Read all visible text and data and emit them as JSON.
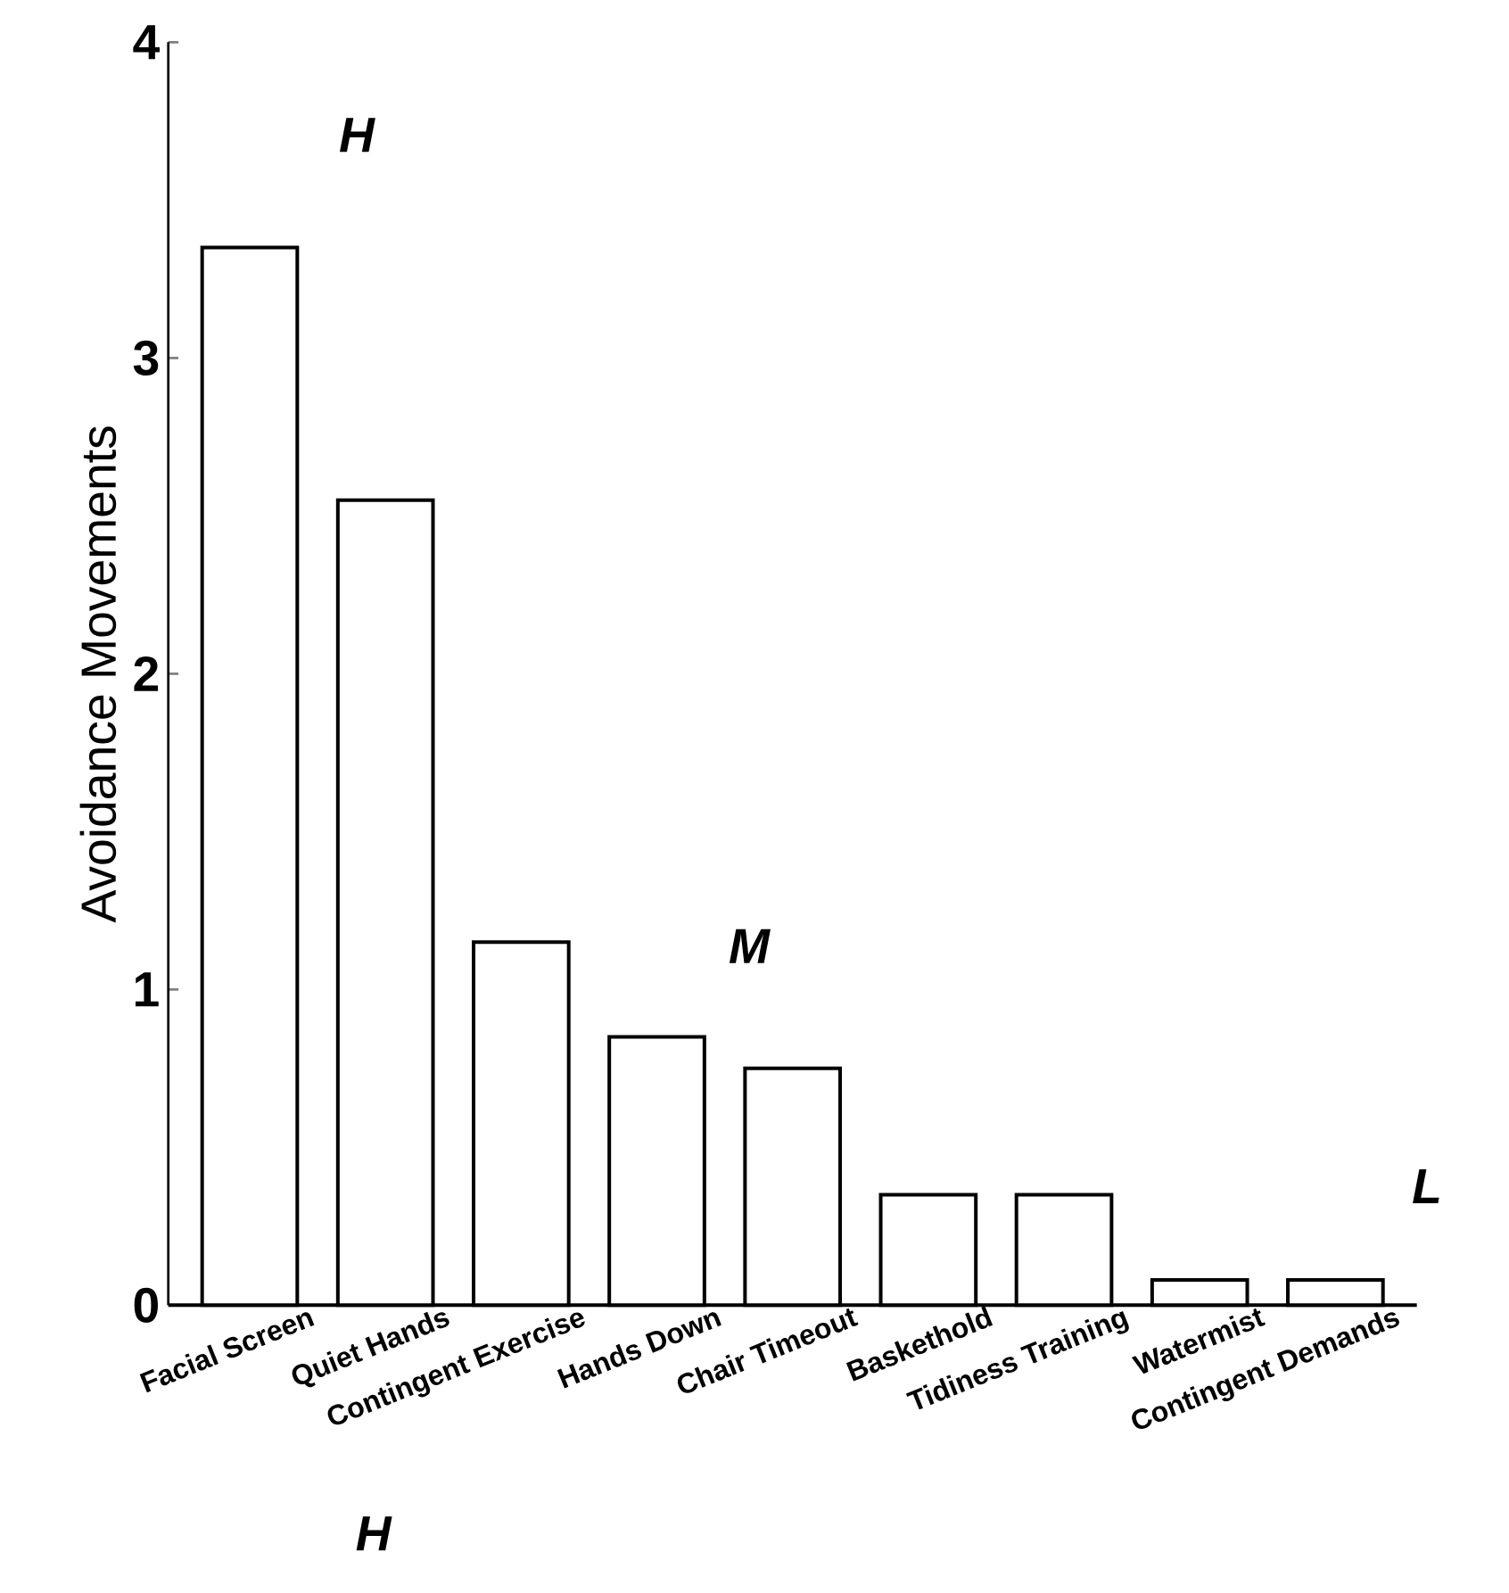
{
  "chart_data": {
    "type": "bar",
    "ylabel": "Avoidance Movements",
    "categories": [
      "Facial Screen",
      "Quiet Hands",
      "Contingent Exercise",
      "Hands Down",
      "Chair Timeout",
      "Baskethold",
      "Tidiness Training",
      "Watermist",
      "Contingent Demands"
    ],
    "values": [
      3.35,
      2.55,
      1.15,
      0.85,
      0.75,
      0.35,
      0.35,
      0.08,
      0.08
    ],
    "color": "#000000",
    "ylim": [
      0,
      4
    ],
    "yticks": [
      0,
      1,
      2,
      3,
      4
    ],
    "grid": false,
    "annotations": [
      "H",
      "M",
      "L",
      "H"
    ]
  }
}
